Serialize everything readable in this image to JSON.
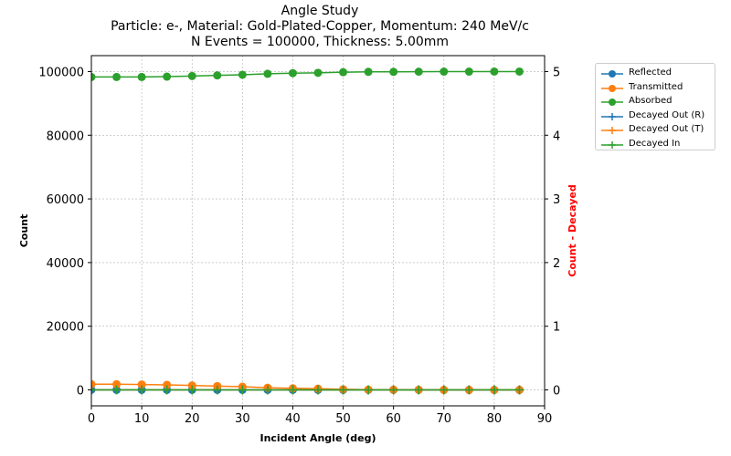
{
  "chart_data": {
    "type": "line",
    "title": "Angle Study",
    "subtitle_lines": [
      "Particle: e-, Material: Gold-Plated-Copper, Momentum: 240 MeV/c",
      "N Events = 100000, Thickness: 5.00mm"
    ],
    "xlabel": "Incident Angle (deg)",
    "ylabel": "Count",
    "ylabel_right": "Count - Decayed",
    "xlim": [
      0,
      90
    ],
    "ylim": [
      -5000,
      105000
    ],
    "ylim_right": [
      -0.25,
      5.25
    ],
    "x_ticks": [
      0,
      10,
      20,
      30,
      40,
      50,
      60,
      70,
      80,
      90
    ],
    "y_ticks": [
      0,
      20000,
      40000,
      60000,
      80000,
      100000
    ],
    "y_ticks_right": [
      0,
      1,
      2,
      3,
      4,
      5
    ],
    "grid": true,
    "legend_position": "outside-right",
    "x": [
      0,
      5,
      10,
      15,
      20,
      25,
      30,
      35,
      40,
      45,
      50,
      55,
      60,
      65,
      70,
      75,
      80,
      85
    ],
    "series": [
      {
        "name": "Reflected",
        "axis": "left",
        "color": "#1f77b4",
        "marker": "circle",
        "values": [
          50,
          40,
          40,
          30,
          30,
          30,
          20,
          20,
          20,
          20,
          20,
          20,
          20,
          20,
          10,
          10,
          10,
          10
        ]
      },
      {
        "name": "Transmitted",
        "axis": "left",
        "color": "#ff7f0e",
        "marker": "circle",
        "values": [
          1800,
          1800,
          1700,
          1600,
          1400,
          1200,
          1000,
          700,
          500,
          400,
          200,
          100,
          100,
          50,
          20,
          10,
          10,
          0
        ]
      },
      {
        "name": "Absorbed",
        "axis": "left",
        "color": "#2ca02c",
        "marker": "circle",
        "values": [
          98300,
          98300,
          98300,
          98400,
          98600,
          98800,
          99000,
          99300,
          99500,
          99600,
          99800,
          99900,
          99900,
          99950,
          99970,
          99980,
          99990,
          99990
        ]
      },
      {
        "name": "Decayed Out (R)",
        "axis": "right",
        "color": "#1f77b4",
        "marker": "plus",
        "values": [
          0,
          0,
          0,
          0,
          0,
          0,
          0,
          0,
          0,
          0,
          0,
          0,
          0,
          0,
          0,
          0,
          0,
          0
        ]
      },
      {
        "name": "Decayed Out (T)",
        "axis": "right",
        "color": "#ff7f0e",
        "marker": "plus",
        "values": [
          0,
          0,
          0,
          0,
          0,
          0,
          0,
          0,
          0,
          0,
          0,
          0,
          0,
          0,
          0,
          0,
          0,
          0
        ]
      },
      {
        "name": "Decayed In",
        "axis": "right",
        "color": "#2ca02c",
        "marker": "plus",
        "values": [
          0,
          0,
          0,
          0,
          0,
          0,
          0,
          0,
          0,
          0,
          0,
          0,
          0,
          0,
          0,
          0,
          0,
          0
        ]
      }
    ],
    "colors": {
      "ylabel_right": "#ff0000",
      "grid": "#b0b0b0"
    }
  }
}
